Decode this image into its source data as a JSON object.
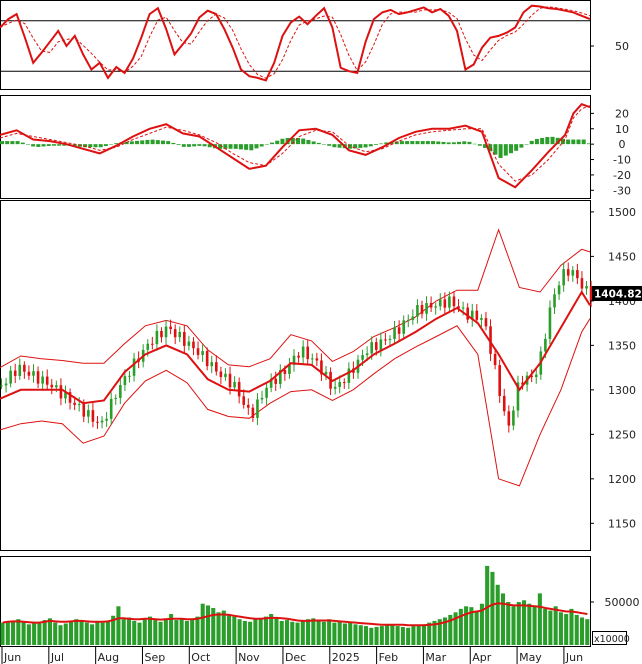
{
  "chart_data": [
    {
      "panel": "stochastic",
      "type": "line",
      "y_ticks": [
        "50"
      ],
      "ylim": [
        0,
        100
      ],
      "reference_lines": [
        80,
        20
      ],
      "colors": {
        "k": "#dd1111",
        "d": "#dd1111"
      },
      "series": [
        {
          "x": [
            0,
            4,
            8,
            12,
            16,
            20,
            24,
            28,
            32,
            36,
            40,
            44,
            48,
            52,
            56,
            60,
            64,
            68,
            72,
            76,
            80,
            84,
            88,
            92,
            96,
            100,
            104,
            108,
            112,
            116,
            120,
            124,
            128,
            132,
            136,
            140,
            144,
            148,
            152,
            156,
            160,
            164,
            168,
            172,
            176,
            180,
            184,
            188,
            192,
            196,
            200,
            204,
            208,
            212,
            216,
            220,
            224,
            228,
            232,
            236,
            240,
            244,
            248,
            252,
            256,
            260,
            264,
            268,
            272,
            276,
            280,
            284
          ],
          "values": [
            72,
            82,
            88,
            60,
            30,
            42,
            55,
            68,
            50,
            62,
            40,
            22,
            30,
            12,
            25,
            18,
            35,
            60,
            88,
            95,
            70,
            40,
            52,
            65,
            84,
            92,
            88,
            70,
            48,
            22,
            14,
            12,
            9,
            30,
            62,
            78,
            85,
            76,
            86,
            95,
            72,
            24,
            20,
            18,
            55,
            82,
            90,
            93,
            88,
            90,
            93,
            96,
            90,
            94,
            86,
            68,
            22,
            28,
            48,
            60,
            62,
            66,
            72,
            90,
            98,
            97,
            95,
            94,
            92,
            90,
            86,
            82
          ]
        }
      ]
    },
    {
      "panel": "macd",
      "type": "line",
      "y_ticks": [
        "20",
        "10",
        "0",
        "-10",
        "-20",
        "-30"
      ],
      "ylim": [
        -35,
        30
      ],
      "colors": {
        "macd": "#dd1111",
        "signal": "#dd1111",
        "histogram": "#2a9d2a"
      },
      "series": [
        {
          "x": [
            0,
            8,
            16,
            24,
            32,
            40,
            48,
            56,
            64,
            72,
            80,
            88,
            96,
            104,
            112,
            120,
            128,
            136,
            144,
            152,
            160,
            168,
            176,
            184,
            192,
            200,
            208,
            216,
            224,
            232,
            240,
            248,
            256,
            264,
            272,
            276,
            280,
            284
          ],
          "values": [
            6,
            9,
            3,
            2,
            0,
            -3,
            -6,
            -1,
            5,
            10,
            13,
            7,
            5,
            -2,
            -9,
            -16,
            -14,
            -2,
            9,
            10,
            6,
            -4,
            -7,
            -2,
            4,
            8,
            10,
            10,
            12,
            8,
            -22,
            -28,
            -17,
            -5,
            6,
            20,
            26,
            24
          ]
        },
        {
          "x": [
            0,
            8,
            16,
            24,
            32,
            40,
            48,
            56,
            64,
            72,
            80,
            88,
            96,
            104,
            112,
            120,
            128,
            136,
            144,
            152,
            160,
            168,
            176,
            184,
            192,
            200,
            208,
            216,
            224,
            232,
            240,
            248,
            256,
            264,
            272,
            276,
            280,
            284
          ],
          "values": [
            4,
            7,
            5,
            3,
            1,
            -1,
            -4,
            -2,
            3,
            7,
            11,
            9,
            6,
            1,
            -6,
            -12,
            -14,
            -6,
            5,
            9,
            8,
            -1,
            -5,
            -3,
            2,
            6,
            8,
            9,
            10,
            10,
            -13,
            -24,
            -20,
            -10,
            3,
            17,
            23,
            25
          ]
        }
      ]
    },
    {
      "panel": "price",
      "type": "line",
      "y_ticks": [
        "1500",
        "1450",
        "1400",
        "1350",
        "1300",
        "1250",
        "1200",
        "1150"
      ],
      "ylim": [
        1120,
        1510
      ],
      "last_value": "1404.820",
      "colors": {
        "up": "#2a9d2a",
        "down": "#dd1111",
        "ma": "#dd1111",
        "band": "#dd1111",
        "tag": "#000000"
      },
      "series": [
        {
          "x": [
            0,
            8,
            16,
            24,
            32,
            40,
            48,
            56,
            64,
            72,
            80,
            88,
            96,
            104,
            112,
            120,
            128,
            136,
            144,
            152,
            160,
            168,
            176,
            184,
            192,
            200,
            208,
            216,
            224,
            232,
            236,
            240,
            244,
            248,
            252,
            256,
            260,
            264,
            268,
            272,
            276,
            280,
            284
          ],
          "values": [
            1305,
            1325,
            1315,
            1305,
            1290,
            1275,
            1260,
            1300,
            1330,
            1355,
            1370,
            1355,
            1340,
            1320,
            1305,
            1270,
            1305,
            1320,
            1345,
            1330,
            1300,
            1320,
            1345,
            1355,
            1370,
            1390,
            1395,
            1400,
            1385,
            1380,
            1340,
            1295,
            1255,
            1300,
            1315,
            1312,
            1340,
            1390,
            1420,
            1435,
            1430,
            1415,
            1405
          ]
        },
        {
          "x": [
            0,
            10,
            20,
            30,
            40,
            50,
            60,
            70,
            80,
            90,
            100,
            110,
            120,
            130,
            140,
            150,
            160,
            170,
            180,
            190,
            200,
            210,
            220,
            230,
            240,
            250,
            260,
            270,
            280,
            284
          ],
          "values": [
            1290,
            1300,
            1300,
            1300,
            1285,
            1288,
            1320,
            1340,
            1350,
            1340,
            1312,
            1300,
            1298,
            1310,
            1330,
            1328,
            1310,
            1322,
            1340,
            1352,
            1365,
            1380,
            1392,
            1375,
            1340,
            1300,
            1330,
            1370,
            1410,
            1395
          ]
        },
        {
          "x": [
            0,
            10,
            20,
            30,
            40,
            50,
            60,
            70,
            80,
            90,
            100,
            110,
            120,
            130,
            140,
            150,
            160,
            170,
            180,
            190,
            200,
            210,
            220,
            230,
            240,
            250,
            260,
            270,
            280,
            284
          ],
          "values": [
            1325,
            1338,
            1335,
            1333,
            1330,
            1330,
            1352,
            1372,
            1378,
            1372,
            1345,
            1328,
            1326,
            1335,
            1362,
            1355,
            1332,
            1343,
            1360,
            1370,
            1382,
            1400,
            1412,
            1412,
            1480,
            1415,
            1410,
            1440,
            1458,
            1455
          ]
        },
        {
          "x": [
            0,
            10,
            20,
            30,
            40,
            50,
            60,
            70,
            80,
            90,
            100,
            110,
            120,
            130,
            140,
            150,
            160,
            170,
            180,
            190,
            200,
            210,
            220,
            230,
            240,
            250,
            260,
            270,
            280,
            284
          ],
          "values": [
            1255,
            1262,
            1265,
            1262,
            1240,
            1248,
            1285,
            1310,
            1322,
            1308,
            1278,
            1270,
            1268,
            1285,
            1298,
            1300,
            1288,
            1300,
            1318,
            1335,
            1348,
            1360,
            1372,
            1340,
            1200,
            1192,
            1250,
            1300,
            1365,
            1380
          ]
        }
      ]
    },
    {
      "panel": "volume",
      "type": "bar",
      "y_ticks": [
        "50000"
      ],
      "unit": "x10000",
      "ylim": [
        0,
        100000
      ],
      "colors": {
        "bars": "#2a9d2a",
        "ma": "#dd1111"
      },
      "values": [
        26000,
        27000,
        28000,
        30000,
        27000,
        24000,
        26000,
        25000,
        29000,
        31000,
        26000,
        23000,
        25000,
        28000,
        30000,
        29000,
        26000,
        24000,
        27000,
        26000,
        28000,
        34000,
        45000,
        30000,
        32000,
        28000,
        26000,
        30000,
        33000,
        29000,
        27000,
        31000,
        36000,
        29000,
        30000,
        28000,
        30000,
        33000,
        48000,
        46000,
        43000,
        38000,
        40000,
        35000,
        33000,
        30000,
        28000,
        27000,
        30000,
        31000,
        33000,
        36000,
        31000,
        28000,
        29000,
        27000,
        26000,
        28000,
        30000,
        31000,
        28000,
        27000,
        30000,
        26000,
        28000,
        25000,
        26000,
        24000,
        23000,
        22000,
        20000,
        21000,
        22000,
        23000,
        24000,
        22000,
        21000,
        20000,
        22000,
        23000,
        24000,
        26000,
        28000,
        30000,
        32000,
        35000,
        38000,
        42000,
        45000,
        44000,
        40000,
        48000,
        92000,
        85000,
        70000,
        60000,
        50000,
        45000,
        50000,
        52000,
        48000,
        45000,
        60000,
        42000,
        40000,
        45000,
        38000,
        36000,
        42000,
        35000,
        32000,
        30000
      ],
      "series": [
        {
          "values": [
            26000,
            27000,
            27500,
            27500,
            27000,
            26500,
            26000,
            26000,
            27000,
            28000,
            27500,
            27000,
            27000,
            27500,
            28000,
            28000,
            27500,
            27000,
            27000,
            27000,
            27500,
            29000,
            31000,
            31000,
            30500,
            30000,
            30000,
            30500,
            30500,
            30000,
            29500,
            30000,
            30500,
            30500,
            30500,
            30000,
            30000,
            30500,
            32000,
            33500,
            35000,
            35500,
            35500,
            35000,
            34000,
            33000,
            32000,
            31000,
            30500,
            30500,
            31000,
            31500,
            31500,
            31000,
            30500,
            29500,
            28500,
            28000,
            28000,
            28500,
            28500,
            28500,
            28500,
            28000,
            27500,
            27000,
            26500,
            26000,
            25500,
            25000,
            24500,
            24000,
            23500,
            23500,
            23500,
            23500,
            23500,
            23000,
            23000,
            23000,
            23000,
            23500,
            24000,
            25000,
            26500,
            28500,
            31000,
            33500,
            36000,
            38000,
            39000,
            40000,
            44000,
            47000,
            48500,
            48000,
            47000,
            46000,
            46000,
            46000,
            45500,
            45000,
            44500,
            43000,
            42000,
            41000,
            40000,
            39000,
            39000,
            38000,
            37000,
            36000
          ]
        }
      ]
    }
  ],
  "x_axis": {
    "months": [
      "Jun",
      "Jul",
      "Aug",
      "Sep",
      "Oct",
      "Nov",
      "Dec",
      "2025",
      "Feb",
      "Mar",
      "Apr",
      "May",
      "Jun"
    ]
  }
}
